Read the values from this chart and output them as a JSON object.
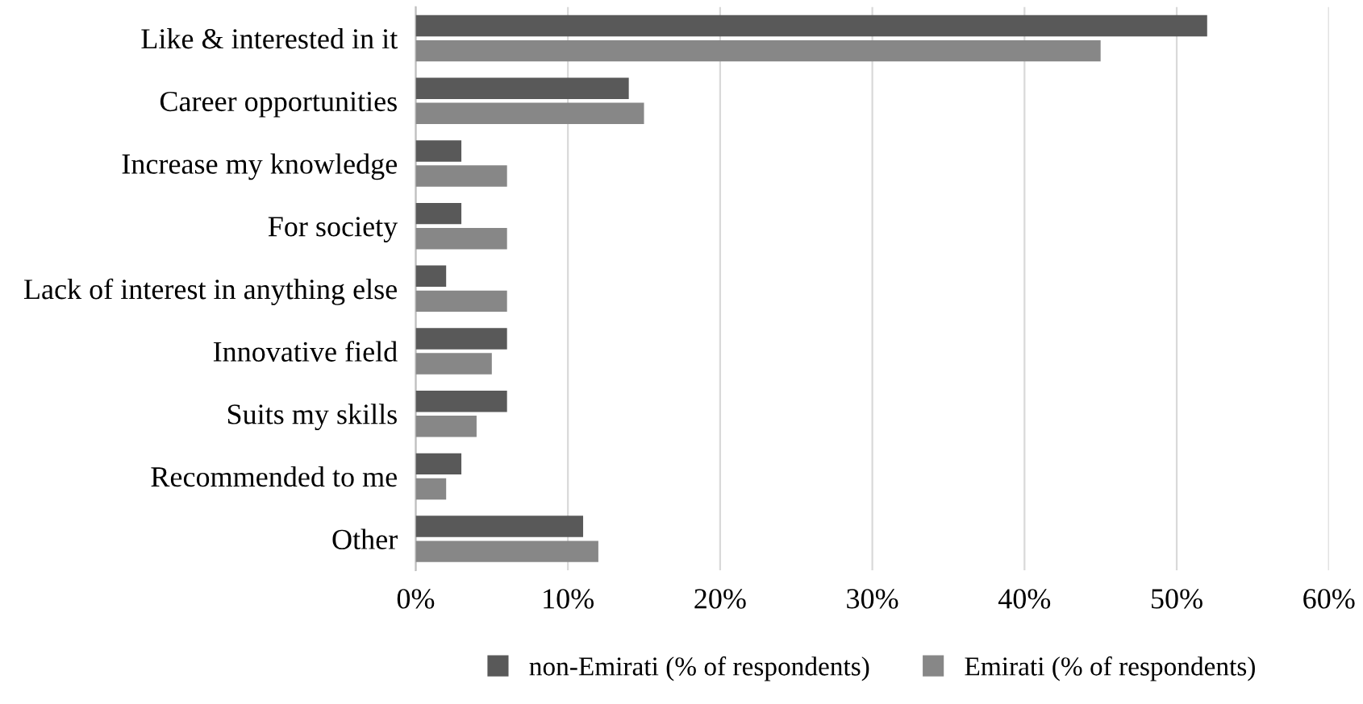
{
  "chart_data": {
    "type": "bar",
    "orientation": "horizontal",
    "categories": [
      "Like & interested in it",
      "Career opportunities",
      "Increase my knowledge",
      "For society",
      "Lack of interest in anything else",
      "Innovative field",
      "Suits my skills",
      "Recommended to me",
      "Other"
    ],
    "series": [
      {
        "name": "non-Emirati (% of respondents)",
        "color": "#595959",
        "values": [
          52,
          14,
          3,
          3,
          2,
          6,
          6,
          3,
          11
        ]
      },
      {
        "name": "Emirati (% of respondents)",
        "color": "#878787",
        "values": [
          45,
          15,
          6,
          6,
          6,
          5,
          4,
          2,
          12
        ]
      }
    ],
    "xlim": [
      0,
      60
    ],
    "xticks": [
      {
        "value": 0,
        "label": "0%"
      },
      {
        "value": 10,
        "label": "10%"
      },
      {
        "value": 20,
        "label": "20%"
      },
      {
        "value": 30,
        "label": "30%"
      },
      {
        "value": 40,
        "label": "40%"
      },
      {
        "value": 50,
        "label": "50%"
      },
      {
        "value": 60,
        "label": "60%"
      }
    ],
    "grid": "x",
    "legend": "bottom"
  }
}
